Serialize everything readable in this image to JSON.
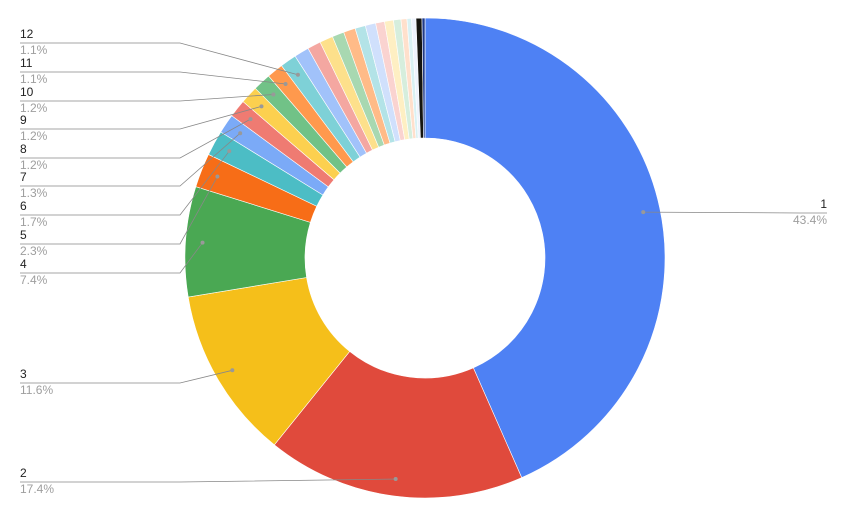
{
  "chart_data": {
    "type": "donut",
    "categories": [
      "1",
      "2",
      "3",
      "4",
      "5",
      "6",
      "7",
      "8",
      "9",
      "10",
      "11",
      "12",
      null,
      null,
      null,
      null,
      null,
      null,
      null,
      null,
      null,
      null,
      null,
      null,
      null,
      null,
      null
    ],
    "values": [
      43.4,
      17.4,
      11.6,
      7.4,
      2.3,
      1.7,
      1.3,
      1.2,
      1.2,
      1.2,
      1.1,
      1.1,
      1.0,
      0.9,
      0.9,
      0.8,
      0.8,
      0.7,
      0.7,
      0.6,
      0.6,
      0.5,
      0.4,
      0.3,
      0.3,
      0.4,
      0.2
    ],
    "value_labels": [
      "43.4%",
      "17.4%",
      "11.6%",
      "7.4%",
      "2.3%",
      "1.7%",
      "1.3%",
      "1.2%",
      "1.2%",
      "1.2%",
      "1.1%",
      "1.1%",
      null,
      null,
      null,
      null,
      null,
      null,
      null,
      null,
      null,
      null,
      null,
      null,
      null,
      null,
      null
    ],
    "colors": [
      "#4e81f4",
      "#e04a3c",
      "#f5bf1a",
      "#4aa853",
      "#f76d17",
      "#4cbdc5",
      "#7baaf7",
      "#ef7b72",
      "#fcd04f",
      "#71c287",
      "#ff994d",
      "#7ed1d7",
      "#a1c2fa",
      "#f4a7a1",
      "#fde08b",
      "#a8d8b1",
      "#ffbb88",
      "#b3e3e7",
      "#d0e0fc",
      "#fad3d0",
      "#feefc3",
      "#d6eedd",
      "#ffe0cc",
      "#d9f1f3",
      "#eef3fd",
      "#151510",
      "#1f3a8a"
    ]
  }
}
